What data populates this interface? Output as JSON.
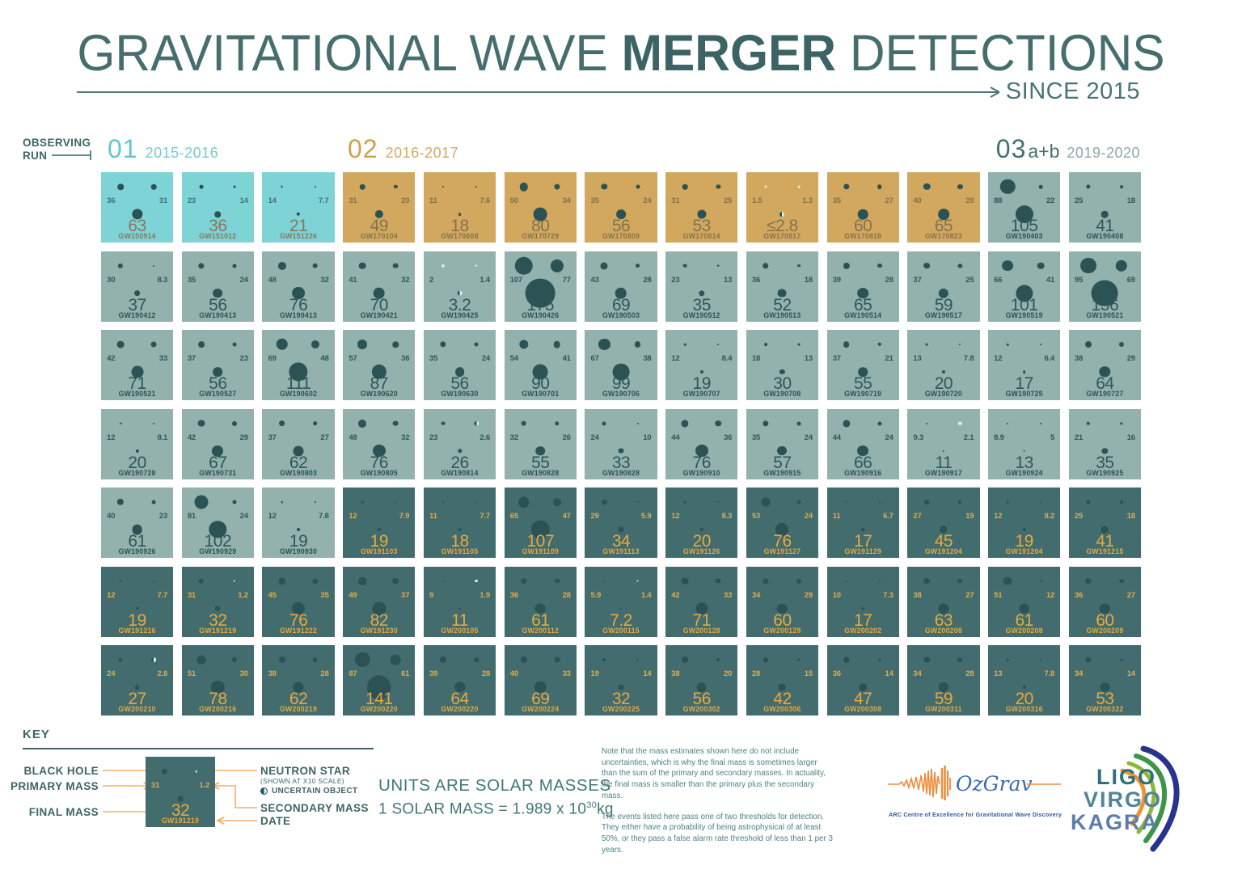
{
  "title": {
    "prefix": "GRAVITATIONAL WAVE ",
    "bold": "MERGER",
    "suffix": " DETECTIONS",
    "subtitle": "SINCE 2015"
  },
  "observing_run": {
    "label_top": "OBSERVING",
    "label_bottom": "RUN",
    "o1": {
      "number": "01",
      "years": "2015-2016"
    },
    "o2": {
      "number": "02",
      "years": "2016-2017"
    },
    "o3": {
      "number": "03",
      "suffix": "a+b",
      "years": "2019-2020"
    }
  },
  "palette": {
    "black_hole": "#2b5254",
    "neutron_star": "#cdf2f0",
    "accent_orange": "#f3b168",
    "teal_text": "#3e6565",
    "title_teal": "#466e6e"
  },
  "run_styles": {
    "O1": {
      "tile": "#7dd3d6",
      "mass": "#3f7376",
      "final": "#88785c",
      "name": "#88785c"
    },
    "O2": {
      "tile": "#d2a85e",
      "mass": "#847148",
      "final": "#85724e",
      "name": "#85724e"
    },
    "O3a": {
      "tile": "#93b1ad",
      "mass": "#2e5758",
      "final": "#2e5758",
      "name": "#2c5253"
    },
    "O3b": {
      "tile": "#426c6d",
      "mass": "#e3aa4b",
      "final": "#e9a83e",
      "name": "#e9a83e"
    }
  },
  "key": {
    "title": "KEY",
    "black_hole": "BLACK HOLE",
    "primary_mass": "PRIMARY MASS",
    "final_mass": "FINAL MASS",
    "neutron_star": "NEUTRON STAR",
    "neutron_star_note": "(SHOWN AT X10 SCALE)",
    "uncertain": "UNCERTAIN OBJECT",
    "secondary_mass": "SECONDARY MASS",
    "date": "DATE",
    "example": {
      "name": "GW191219",
      "primary": "31",
      "secondary": "1.2",
      "secondary_type": "ns",
      "final": "32",
      "run": "O3b"
    }
  },
  "units": {
    "line1": "UNITS ARE SOLAR MASSES",
    "line2_base": "1 SOLAR MASS = 1.989 x 10",
    "line2_exp": "30",
    "line2_unit": "kg"
  },
  "notes": {
    "p1": "Note that the mass estimates shown here do not include uncertainties, which is why the final mass is sometimes larger than the sum of the primary and secondary masses. In actuality, the final mass is smaller than the primary plus the secondary mass.",
    "p2": "The events listed here pass one of two thresholds for detection. They either have a probability of being astrophysical of at least 50%, or they pass a false alarm rate threshold of less than 1 per 3 years."
  },
  "logos": {
    "ozgrav": {
      "name": "OzGrav",
      "subtitle": "ARC Centre of Excellence for Gravitational Wave Discovery"
    },
    "lvk": {
      "l1": "LIGO",
      "l2": "VIRGO",
      "l3": "KAGRA"
    }
  },
  "chart_data": {
    "type": "table",
    "title": "Gravitational Wave Merger Detections since 2015",
    "columns": [
      "event",
      "primary_mass",
      "secondary_mass",
      "final_mass",
      "observing_run"
    ],
    "units": "solar masses",
    "events": [
      {
        "name": "GW150914",
        "primary": "36",
        "secondary": "31",
        "final": "63",
        "run": "O1"
      },
      {
        "name": "GW151012",
        "primary": "23",
        "secondary": "14",
        "final": "36",
        "run": "O1"
      },
      {
        "name": "GW151226",
        "primary": "14",
        "secondary": "7.7",
        "final": "21",
        "run": "O1"
      },
      {
        "name": "GW170104",
        "primary": "31",
        "secondary": "20",
        "final": "49",
        "run": "O2"
      },
      {
        "name": "GW170608",
        "primary": "11",
        "secondary": "7.6",
        "final": "18",
        "run": "O2"
      },
      {
        "name": "GW170729",
        "primary": "50",
        "secondary": "34",
        "final": "80",
        "run": "O2"
      },
      {
        "name": "GW170809",
        "primary": "35",
        "secondary": "24",
        "final": "56",
        "run": "O2"
      },
      {
        "name": "GW170814",
        "primary": "31",
        "secondary": "25",
        "final": "53",
        "run": "O2"
      },
      {
        "name": "GW170817",
        "primary": "1.5",
        "secondary": "1.3",
        "final": "≤2.8",
        "run": "O2",
        "primary_type": "ns",
        "secondary_type": "ns",
        "final_type": "u"
      },
      {
        "name": "GW170818",
        "primary": "35",
        "secondary": "27",
        "final": "60",
        "run": "O2"
      },
      {
        "name": "GW170823",
        "primary": "40",
        "secondary": "29",
        "final": "65",
        "run": "O2"
      },
      {
        "name": "GW190403",
        "primary": "88",
        "secondary": "22",
        "final": "105",
        "run": "O3a"
      },
      {
        "name": "GW190408",
        "primary": "25",
        "secondary": "18",
        "final": "41",
        "run": "O3a"
      },
      {
        "name": "GW190412",
        "primary": "30",
        "secondary": "8.3",
        "final": "37",
        "run": "O3a"
      },
      {
        "name": "GW190413",
        "primary": "35",
        "secondary": "24",
        "final": "56",
        "run": "O3a"
      },
      {
        "name": "GW190413",
        "primary": "48",
        "secondary": "32",
        "final": "76",
        "run": "O3a"
      },
      {
        "name": "GW190421",
        "primary": "41",
        "secondary": "32",
        "final": "70",
        "run": "O3a"
      },
      {
        "name": "GW190425",
        "primary": "2",
        "secondary": "1.4",
        "final": "3.2",
        "run": "O3a",
        "primary_type": "ns",
        "secondary_type": "ns",
        "final_type": "u"
      },
      {
        "name": "GW190426",
        "primary": "107",
        "secondary": "77",
        "final": "175",
        "run": "O3a"
      },
      {
        "name": "GW190503",
        "primary": "43",
        "secondary": "28",
        "final": "69",
        "run": "O3a"
      },
      {
        "name": "GW190512",
        "primary": "23",
        "secondary": "13",
        "final": "35",
        "run": "O3a"
      },
      {
        "name": "GW190513",
        "primary": "36",
        "secondary": "18",
        "final": "52",
        "run": "O3a"
      },
      {
        "name": "GW190514",
        "primary": "39",
        "secondary": "28",
        "final": "65",
        "run": "O3a"
      },
      {
        "name": "GW190517",
        "primary": "37",
        "secondary": "25",
        "final": "59",
        "run": "O3a"
      },
      {
        "name": "GW190519",
        "primary": "66",
        "secondary": "41",
        "final": "101",
        "run": "O3a"
      },
      {
        "name": "GW190521",
        "primary": "95",
        "secondary": "69",
        "final": "156",
        "run": "O3a"
      },
      {
        "name": "GW190521",
        "primary": "42",
        "secondary": "33",
        "final": "71",
        "run": "O3a"
      },
      {
        "name": "GW190527",
        "primary": "37",
        "secondary": "23",
        "final": "56",
        "run": "O3a"
      },
      {
        "name": "GW190602",
        "primary": "69",
        "secondary": "48",
        "final": "111",
        "run": "O3a"
      },
      {
        "name": "GW190620",
        "primary": "57",
        "secondary": "36",
        "final": "87",
        "run": "O3a"
      },
      {
        "name": "GW190630",
        "primary": "35",
        "secondary": "24",
        "final": "56",
        "run": "O3a"
      },
      {
        "name": "GW190701",
        "primary": "54",
        "secondary": "41",
        "final": "90",
        "run": "O3a"
      },
      {
        "name": "GW190706",
        "primary": "67",
        "secondary": "38",
        "final": "99",
        "run": "O3a"
      },
      {
        "name": "GW190707",
        "primary": "12",
        "secondary": "8.4",
        "final": "19",
        "run": "O3a"
      },
      {
        "name": "GW190708",
        "primary": "18",
        "secondary": "13",
        "final": "30",
        "run": "O3a"
      },
      {
        "name": "GW190719",
        "primary": "37",
        "secondary": "21",
        "final": "55",
        "run": "O3a"
      },
      {
        "name": "GW190720",
        "primary": "13",
        "secondary": "7.8",
        "final": "20",
        "run": "O3a"
      },
      {
        "name": "GW190725",
        "primary": "12",
        "secondary": "6.4",
        "final": "17",
        "run": "O3a"
      },
      {
        "name": "GW190727",
        "primary": "38",
        "secondary": "29",
        "final": "64",
        "run": "O3a"
      },
      {
        "name": "GW190728",
        "primary": "12",
        "secondary": "8.1",
        "final": "20",
        "run": "O3a"
      },
      {
        "name": "GW190731",
        "primary": "42",
        "secondary": "29",
        "final": "67",
        "run": "O3a"
      },
      {
        "name": "GW190803",
        "primary": "37",
        "secondary": "27",
        "final": "62",
        "run": "O3a"
      },
      {
        "name": "GW190805",
        "primary": "48",
        "secondary": "32",
        "final": "76",
        "run": "O3a"
      },
      {
        "name": "GW190814",
        "primary": "23",
        "secondary": "2.6",
        "final": "26",
        "run": "O3a",
        "secondary_type": "u"
      },
      {
        "name": "GW190828",
        "primary": "32",
        "secondary": "26",
        "final": "55",
        "run": "O3a"
      },
      {
        "name": "GW190828",
        "primary": "24",
        "secondary": "10",
        "final": "33",
        "run": "O3a"
      },
      {
        "name": "GW190910",
        "primary": "44",
        "secondary": "36",
        "final": "76",
        "run": "O3a"
      },
      {
        "name": "GW190915",
        "primary": "35",
        "secondary": "24",
        "final": "57",
        "run": "O3a"
      },
      {
        "name": "GW190916",
        "primary": "44",
        "secondary": "24",
        "final": "66",
        "run": "O3a"
      },
      {
        "name": "GW190917",
        "primary": "9.3",
        "secondary": "2.1",
        "final": "11",
        "run": "O3a",
        "secondary_type": "ns"
      },
      {
        "name": "GW190924",
        "primary": "8.9",
        "secondary": "5",
        "final": "13",
        "run": "O3a"
      },
      {
        "name": "GW190925",
        "primary": "21",
        "secondary": "16",
        "final": "35",
        "run": "O3a"
      },
      {
        "name": "GW190926",
        "primary": "40",
        "secondary": "23",
        "final": "61",
        "run": "O3a"
      },
      {
        "name": "GW190929",
        "primary": "81",
        "secondary": "24",
        "final": "102",
        "run": "O3a"
      },
      {
        "name": "GW190930",
        "primary": "12",
        "secondary": "7.8",
        "final": "19",
        "run": "O3a"
      },
      {
        "name": "GW191103",
        "primary": "12",
        "secondary": "7.9",
        "final": "19",
        "run": "O3b"
      },
      {
        "name": "GW191105",
        "primary": "11",
        "secondary": "7.7",
        "final": "18",
        "run": "O3b"
      },
      {
        "name": "GW191109",
        "primary": "65",
        "secondary": "47",
        "final": "107",
        "run": "O3b"
      },
      {
        "name": "GW191113",
        "primary": "29",
        "secondary": "5.9",
        "final": "34",
        "run": "O3b"
      },
      {
        "name": "GW191126",
        "primary": "12",
        "secondary": "8.3",
        "final": "20",
        "run": "O3b"
      },
      {
        "name": "GW191127",
        "primary": "53",
        "secondary": "24",
        "final": "76",
        "run": "O3b"
      },
      {
        "name": "GW191129",
        "primary": "11",
        "secondary": "6.7",
        "final": "17",
        "run": "O3b"
      },
      {
        "name": "GW191204",
        "primary": "27",
        "secondary": "19",
        "final": "45",
        "run": "O3b"
      },
      {
        "name": "GW191204",
        "primary": "12",
        "secondary": "8.2",
        "final": "19",
        "run": "O3b"
      },
      {
        "name": "GW191215",
        "primary": "25",
        "secondary": "18",
        "final": "41",
        "run": "O3b"
      },
      {
        "name": "GW191216",
        "primary": "12",
        "secondary": "7.7",
        "final": "19",
        "run": "O3b"
      },
      {
        "name": "GW191219",
        "primary": "31",
        "secondary": "1.2",
        "final": "32",
        "run": "O3b",
        "secondary_type": "ns"
      },
      {
        "name": "GW191222",
        "primary": "45",
        "secondary": "35",
        "final": "76",
        "run": "O3b"
      },
      {
        "name": "GW191230",
        "primary": "49",
        "secondary": "37",
        "final": "82",
        "run": "O3b"
      },
      {
        "name": "GW200105",
        "primary": "9",
        "secondary": "1.9",
        "final": "11",
        "run": "O3b",
        "secondary_type": "ns"
      },
      {
        "name": "GW200112",
        "primary": "36",
        "secondary": "28",
        "final": "61",
        "run": "O3b"
      },
      {
        "name": "GW200115",
        "primary": "5.9",
        "secondary": "1.4",
        "final": "7.2",
        "run": "O3b",
        "secondary_type": "ns"
      },
      {
        "name": "GW200128",
        "primary": "42",
        "secondary": "33",
        "final": "71",
        "run": "O3b"
      },
      {
        "name": "GW200129",
        "primary": "34",
        "secondary": "29",
        "final": "60",
        "run": "O3b"
      },
      {
        "name": "GW200202",
        "primary": "10",
        "secondary": "7.3",
        "final": "17",
        "run": "O3b"
      },
      {
        "name": "GW200208",
        "primary": "38",
        "secondary": "27",
        "final": "63",
        "run": "O3b"
      },
      {
        "name": "GW200208",
        "primary": "51",
        "secondary": "12",
        "final": "61",
        "run": "O3b"
      },
      {
        "name": "GW200209",
        "primary": "36",
        "secondary": "27",
        "final": "60",
        "run": "O3b"
      },
      {
        "name": "GW200210",
        "primary": "24",
        "secondary": "2.8",
        "final": "27",
        "run": "O3b",
        "secondary_type": "u"
      },
      {
        "name": "GW200216",
        "primary": "51",
        "secondary": "30",
        "final": "78",
        "run": "O3b"
      },
      {
        "name": "GW200219",
        "primary": "38",
        "secondary": "28",
        "final": "62",
        "run": "O3b"
      },
      {
        "name": "GW200220",
        "primary": "87",
        "secondary": "61",
        "final": "141",
        "run": "O3b"
      },
      {
        "name": "GW200220",
        "primary": "39",
        "secondary": "28",
        "final": "64",
        "run": "O3b"
      },
      {
        "name": "GW200224",
        "primary": "40",
        "secondary": "33",
        "final": "69",
        "run": "O3b"
      },
      {
        "name": "GW200225",
        "primary": "19",
        "secondary": "14",
        "final": "32",
        "run": "O3b"
      },
      {
        "name": "GW200302",
        "primary": "38",
        "secondary": "20",
        "final": "56",
        "run": "O3b"
      },
      {
        "name": "GW200306",
        "primary": "28",
        "secondary": "15",
        "final": "42",
        "run": "O3b"
      },
      {
        "name": "GW200308",
        "primary": "36",
        "secondary": "14",
        "final": "47",
        "run": "O3b"
      },
      {
        "name": "GW200311",
        "primary": "34",
        "secondary": "28",
        "final": "59",
        "run": "O3b"
      },
      {
        "name": "GW200316",
        "primary": "13",
        "secondary": "7.8",
        "final": "20",
        "run": "O3b"
      },
      {
        "name": "GW200322",
        "primary": "34",
        "secondary": "14",
        "final": "53",
        "run": "O3b"
      }
    ]
  }
}
